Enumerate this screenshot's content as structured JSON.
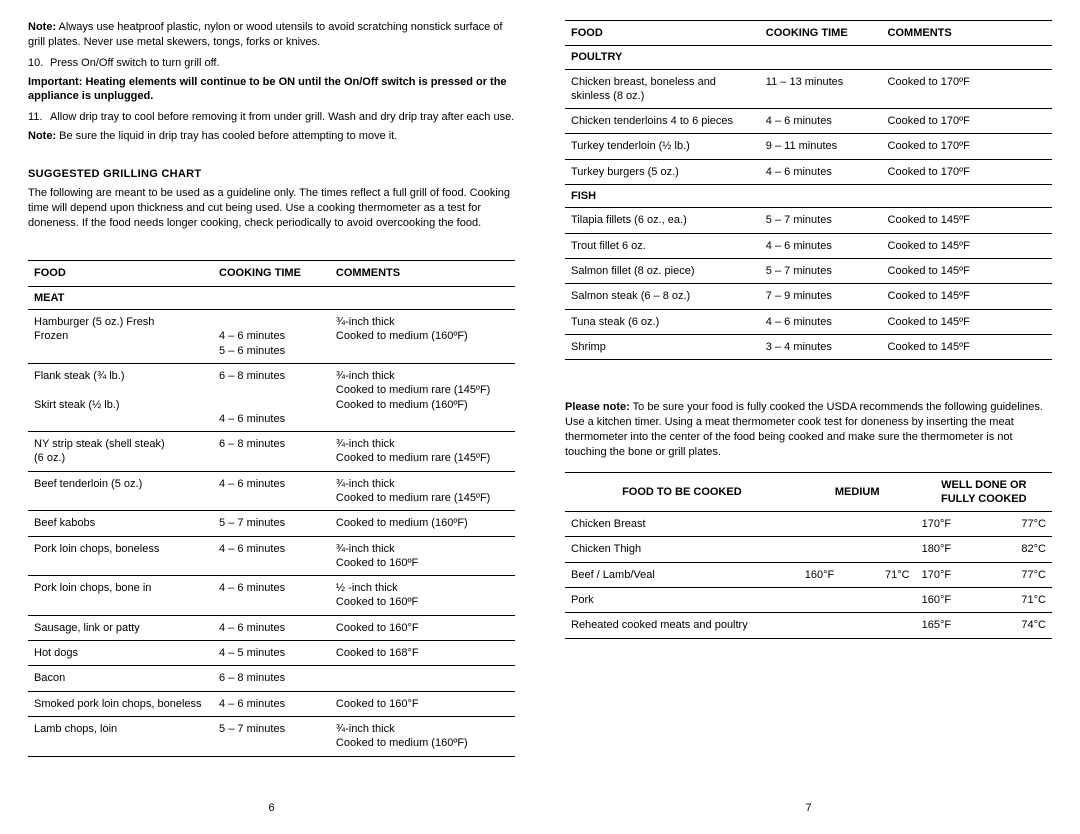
{
  "left": {
    "note1_label": "Note:",
    "note1_text": " Always use heatproof plastic, nylon or wood utensils to avoid scratching nonstick surface of grill plates. Never use metal skewers, tongs, forks or knives.",
    "step10_num": "10.",
    "step10_text": "Press On/Off switch to turn grill off.",
    "important_label": "Important: Heating elements will continue to be ON until the On/Off switch is pressed or the appliance is unplugged.",
    "step11_num": "11.",
    "step11_text": "Allow drip tray to cool before removing it from under grill. Wash and dry drip tray after each use.",
    "note2_label": "Note:",
    "note2_text": " Be sure the liquid in drip tray has cooled before attempting to move it.",
    "chart_heading": "SUGGESTED GRILLING CHART",
    "chart_intro": "The following are meant to be used as a guideline only. The times reflect a full grill of food. Cooking time will depend upon thickness and cut being used.  Use a cooking thermometer as a test for doneness. If the food needs longer cooking, check periodically to avoid overcooking the food.",
    "headers": {
      "food": "FOOD",
      "time": "COOKING TIME",
      "comments": "COMMENTS"
    },
    "meat_label": "MEAT",
    "rows": [
      {
        "food": "Hamburger (5 oz.) Fresh\nFrozen",
        "time": "\n4 – 6 minutes\n5 – 6 minutes",
        "comments": "¾-inch thick\nCooked to medium (160ºF)"
      },
      {
        "food": "Flank steak (¾ lb.)\n\nSkirt steak (½ lb.)",
        "time": "6 – 8 minutes\n\n\n4 – 6 minutes",
        "comments": "¾-inch thick\nCooked to medium rare (145ºF)\nCooked to medium  (160ºF)"
      },
      {
        "food": "NY strip steak (shell steak)\n(6 oz.)",
        "time": "6 – 8 minutes",
        "comments": "¾-inch thick\nCooked to medium rare (145ºF)"
      },
      {
        "food": "Beef tenderloin (5 oz.)",
        "time": "4 – 6 minutes",
        "comments": "¾-inch thick\nCooked to medium rare (145ºF)"
      },
      {
        "food": "Beef kabobs",
        "time": "5 – 7 minutes",
        "comments": "Cooked to medium (160ºF)"
      },
      {
        "food": "Pork loin chops, boneless",
        "time": "4 – 6 minutes",
        "comments": "¾-inch thick\nCooked to 160ºF"
      },
      {
        "food": "Pork loin chops, bone in",
        "time": "4 – 6 minutes",
        "comments": "½ -inch thick\nCooked to 160ºF"
      },
      {
        "food": "Sausage, link or patty",
        "time": "4 – 6 minutes",
        "comments": "Cooked to 160°F"
      },
      {
        "food": "Hot dogs",
        "time": "4 – 5 minutes",
        "comments": "Cooked to 168°F"
      },
      {
        "food": "Bacon",
        "time": "6 – 8 minutes",
        "comments": ""
      },
      {
        "food": "Smoked pork loin chops, boneless",
        "time": "4 – 6 minutes",
        "comments": "Cooked to 160°F"
      },
      {
        "food": "Lamb chops, loin",
        "time": "5 – 7 minutes",
        "comments": "¾-inch thick\nCooked to medium (160ºF)"
      }
    ],
    "page_num": "6"
  },
  "right": {
    "headers": {
      "food": "FOOD",
      "time": "COOKING TIME",
      "comments": "COMMENTS"
    },
    "poultry_label": "POULTRY",
    "poultry_rows": [
      {
        "food": "Chicken breast, boneless and skinless (8 oz.)",
        "time": "11 – 13 minutes",
        "comments": "Cooked to 170ºF"
      },
      {
        "food": "Chicken tenderloins 4 to 6 pieces",
        "time": "4 – 6 minutes",
        "comments": "Cooked to 170ºF"
      },
      {
        "food": "Turkey tenderloin (½ lb.)",
        "time": "9 – 11 minutes",
        "comments": "Cooked to 170ºF"
      },
      {
        "food": "Turkey burgers (5 oz.)",
        "time": "4 – 6 minutes",
        "comments": "Cooked to 170ºF"
      }
    ],
    "fish_label": "FISH",
    "fish_rows": [
      {
        "food": "Tilapia fillets (6 oz., ea.)",
        "time": "5 – 7 minutes",
        "comments": "Cooked to 145ºF"
      },
      {
        "food": "Trout fillet 6 oz.",
        "time": "4 – 6 minutes",
        "comments": "Cooked to 145ºF"
      },
      {
        "food": "Salmon fillet (8 oz. piece)",
        "time": "5 – 7 minutes",
        "comments": "Cooked to 145ºF"
      },
      {
        "food": "Salmon steak (6 – 8 oz.)",
        "time": "7 – 9 minutes",
        "comments": "Cooked to 145ºF"
      },
      {
        "food": "Tuna steak (6 oz.)",
        "time": "4 – 6 minutes",
        "comments": "Cooked to 145ºF"
      },
      {
        "food": "Shrimp",
        "time": "3 – 4 minutes",
        "comments": "Cooked to 145ºF"
      }
    ],
    "please_note_label": "Please note:",
    "please_note_text": " To be sure your food is fully cooked the USDA recommends the following guidelines.  Use a kitchen timer. Using a meat thermometer cook test for doneness by inserting the meat thermometer into the center of the food being cooked and make sure the thermometer is not touching the bone or grill plates.",
    "temp_headers": {
      "food": "FOOD TO BE COOKED",
      "medium": "MEDIUM",
      "well": "WELL DONE OR\nFULLY COOKED"
    },
    "temp_rows": [
      {
        "food": "Chicken Breast",
        "medium_f": "",
        "medium_c": "",
        "well_f": "170°F",
        "well_c": "77°C"
      },
      {
        "food": "Chicken Thigh",
        "medium_f": "",
        "medium_c": "",
        "well_f": "180°F",
        "well_c": "82°C"
      },
      {
        "food": "Beef / Lamb/Veal",
        "medium_f": "160°F",
        "medium_c": "71°C",
        "well_f": "170°F",
        "well_c": "77°C"
      },
      {
        "food": "Pork",
        "medium_f": "",
        "medium_c": "",
        "well_f": "160°F",
        "well_c": "71°C"
      },
      {
        "food": "Reheated cooked meats and poultry",
        "medium_f": "",
        "medium_c": "",
        "well_f": "165°F",
        "well_c": "74°C"
      }
    ],
    "page_num": "7"
  }
}
